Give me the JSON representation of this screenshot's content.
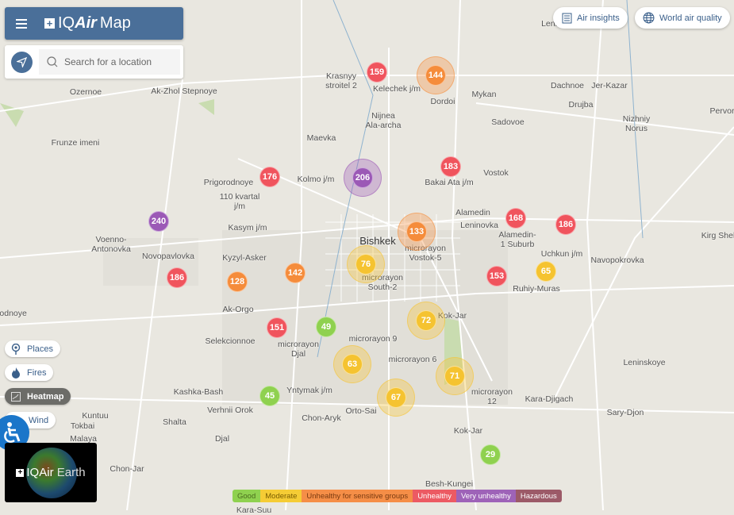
{
  "header": {
    "menu_icon": "hamburger-icon",
    "logo_brand": "IQ",
    "logo_brand_italic": "Air",
    "title": "Map"
  },
  "search": {
    "placeholder": "Search for a location",
    "locate_icon": "navigation-arrow-icon",
    "search_icon": "magnifier-icon"
  },
  "top_buttons": [
    {
      "label": "Air insights",
      "icon": "list-document-icon"
    },
    {
      "label": "World air quality",
      "icon": "globe-icon"
    }
  ],
  "layer_toggles": [
    {
      "label": "Places",
      "icon": "map-pin-icon",
      "active": false
    },
    {
      "label": "Fires",
      "icon": "flame-icon",
      "active": false
    },
    {
      "label": "Heatmap",
      "icon": "heatmap-icon",
      "active": true
    },
    {
      "label": "Wind",
      "icon": "wind-icon",
      "active": false
    }
  ],
  "earth_widget": {
    "brand": "IQAir",
    "label": "Earth"
  },
  "legend": [
    {
      "label": "Good",
      "color": "#8fd14f",
      "text": "#4a6b1e"
    },
    {
      "label": "Moderate",
      "color": "#f5cc35",
      "text": "#7a5d00"
    },
    {
      "label": "Unhealthy for sensitive groups",
      "color": "#f58e47",
      "text": "#7a3a10"
    },
    {
      "label": "Unhealthy",
      "color": "#ec5a63",
      "text": "#ffffff"
    },
    {
      "label": "Very unhealthy",
      "color": "#9e63b8",
      "text": "#ffffff"
    },
    {
      "label": "Hazardous",
      "color": "#9c5a68",
      "text": "#ffffff"
    }
  ],
  "markers": [
    {
      "aqi": "159",
      "level": 3
    },
    {
      "aqi": "144",
      "level": 2
    },
    {
      "aqi": "176",
      "level": 3
    },
    {
      "aqi": "206",
      "level": 4
    },
    {
      "aqi": "183",
      "level": 3
    },
    {
      "aqi": "240",
      "level": 4
    },
    {
      "aqi": "168",
      "level": 3
    },
    {
      "aqi": "186",
      "level": 3
    },
    {
      "aqi": "133",
      "level": 2
    },
    {
      "aqi": "76",
      "level": 1
    },
    {
      "aqi": "186",
      "level": 3
    },
    {
      "aqi": "128",
      "level": 2
    },
    {
      "aqi": "142",
      "level": 2
    },
    {
      "aqi": "153",
      "level": 3
    },
    {
      "aqi": "65",
      "level": 1
    },
    {
      "aqi": "72",
      "level": 1
    },
    {
      "aqi": "151",
      "level": 3
    },
    {
      "aqi": "49",
      "level": 0
    },
    {
      "aqi": "63",
      "level": 1
    },
    {
      "aqi": "71",
      "level": 1
    },
    {
      "aqi": "67",
      "level": 1
    },
    {
      "aqi": "45",
      "level": 0
    },
    {
      "aqi": "29",
      "level": 0
    }
  ],
  "places": [
    "Leninskoe",
    "Krasnyy\nstroitel 2",
    "Kelechek j/m",
    "Dordoi",
    "Mykan",
    "Dachnoe",
    "Jer-Kazar",
    "Drujba",
    "Nizhniy\nNorus",
    "Sadovoe",
    "Pervor",
    "Ozernoe",
    "Ak-Zhol Stepnoye",
    "Frunze imeni",
    "Nijnea\nAla-archa",
    "Maevka",
    "Bakai Ata j/m",
    "Vostok",
    "Kolmo j/m",
    "Prigorodnoye",
    "110 kvartal\nj/m",
    "Kasym j/m",
    "Voenno-\nAntonovka",
    "Novopavlovka",
    "Kyzyl-Asker",
    "Bishkek",
    "microrayon\nVostok-5",
    "Alamedin-\n1 Suburb",
    "Uchkun j/m",
    "Navopokrovka",
    "Kirg Shel",
    "microrayon\nSouth-2",
    "Ruhiy-Muras",
    "Ak-Orgo",
    "Kok-Jar",
    "Selekcionnoe",
    "microrayon\nDjal",
    "microrayon 9",
    "microrayon 6",
    "microrayon\n12",
    "Leninskoye",
    "Kashka-Bash",
    "Yntymak j/m",
    "Verhnii Orok",
    "Orto-Sai",
    "Chon-Aryk",
    "Kara-Djigach",
    "Sary-Djon",
    "Kuntuu",
    "Shalta",
    "Djal",
    "Kok-Jar",
    "Malaya",
    "Chon-Jar",
    "Besh-Kungei",
    "Kara-Suu",
    "vodnoye",
    "Tokbai",
    "Alamedin",
    "Leninovka"
  ]
}
